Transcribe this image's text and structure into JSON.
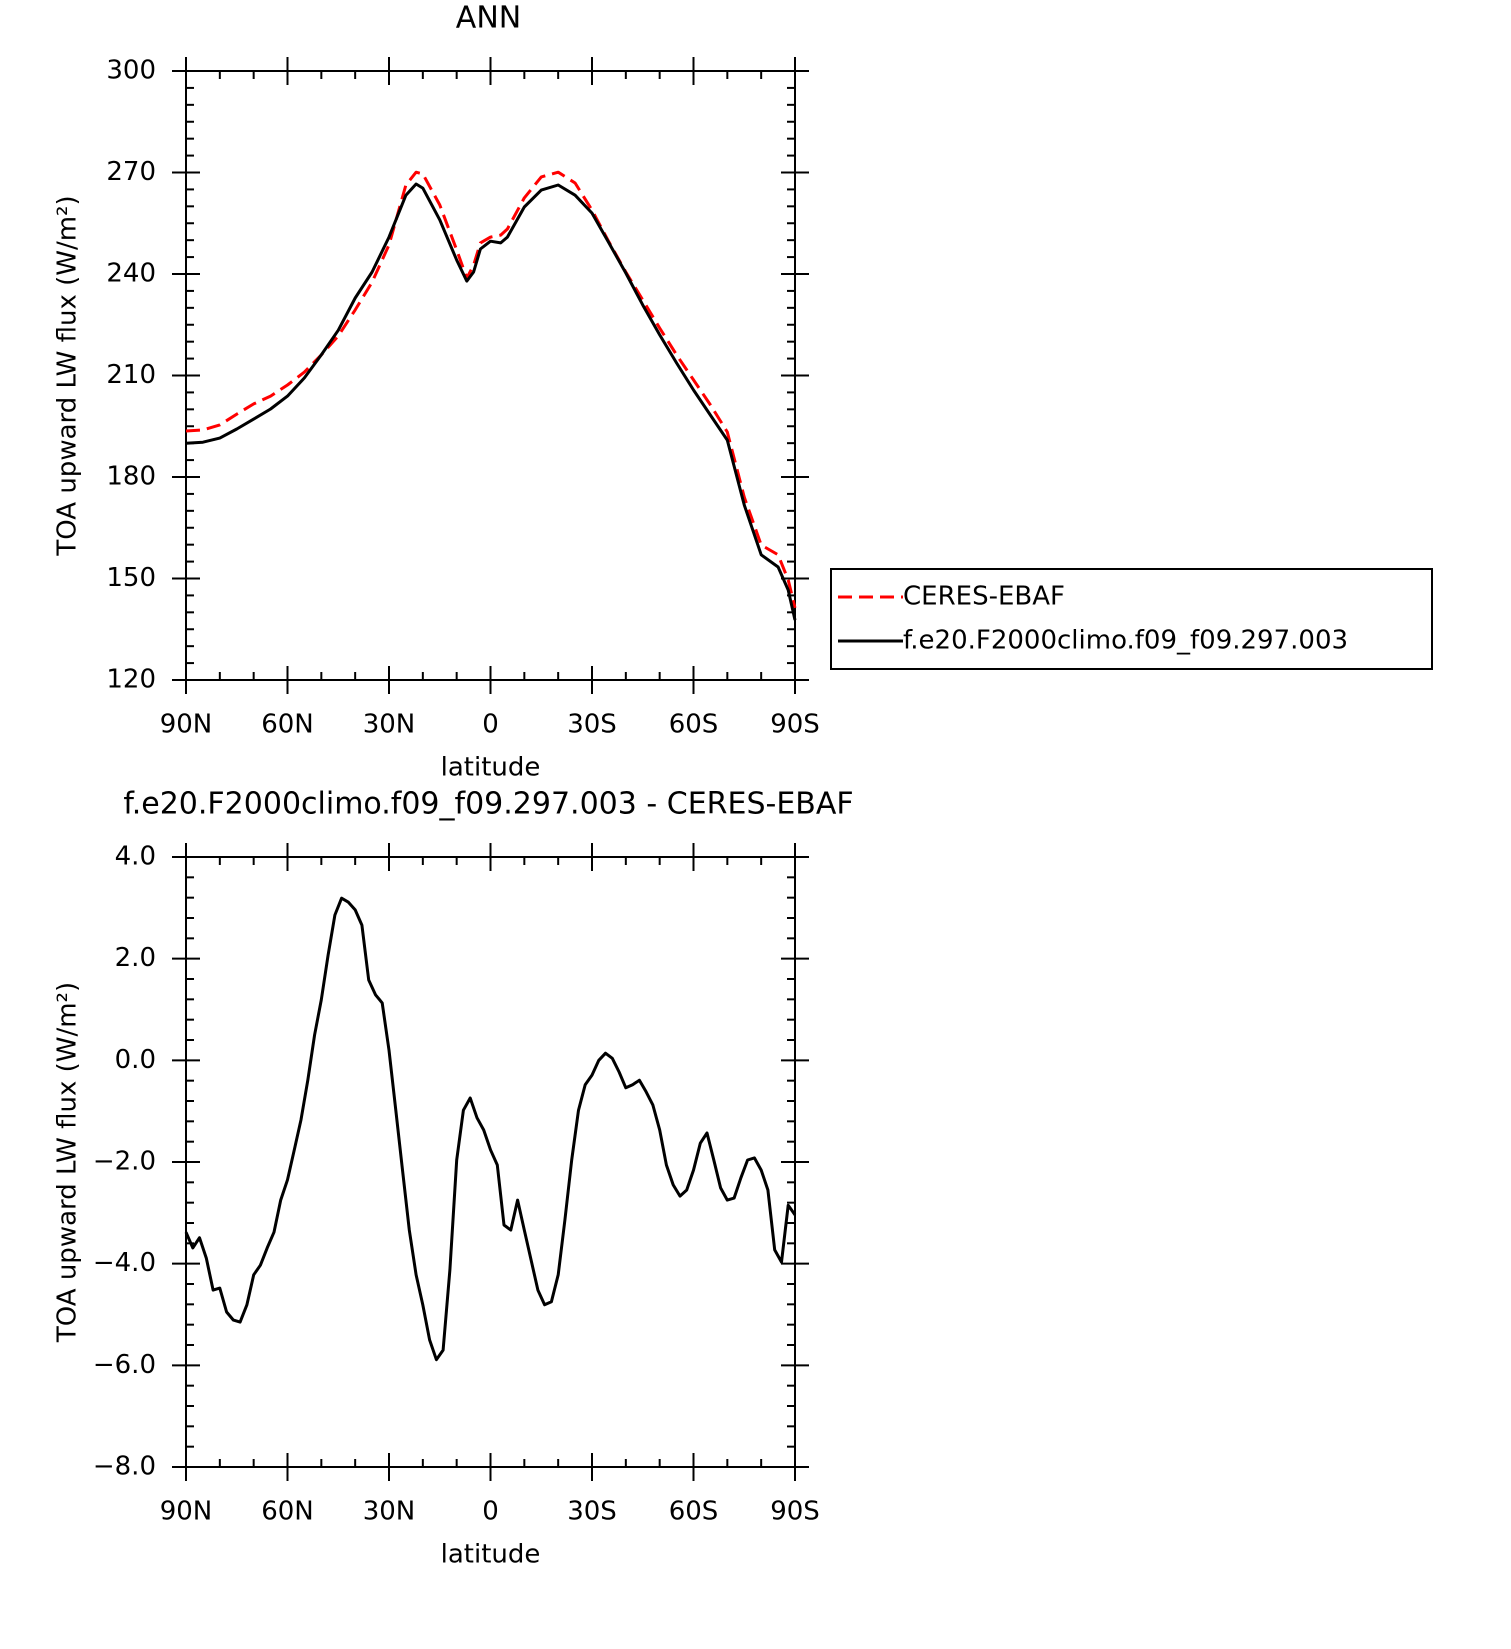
{
  "chart_data": [
    {
      "type": "line",
      "title": "ANN",
      "xlabel": "latitude",
      "ylabel": "TOA upward LW flux (W/m²)",
      "x": [
        90,
        85,
        80,
        75,
        70,
        65,
        60,
        55,
        50,
        45,
        40,
        35,
        30,
        25,
        22,
        20,
        15,
        10,
        7,
        5,
        3,
        0,
        -3,
        -5,
        -10,
        -15,
        -20,
        -25,
        -30,
        -35,
        -40,
        -45,
        -50,
        -55,
        -60,
        -65,
        -70,
        -75,
        -80,
        -85,
        -88,
        -90
      ],
      "series": [
        {
          "name": "CERES-EBAF",
          "color": "#ff0000",
          "style": "dashed",
          "values": [
            193.6,
            193.9,
            195.4,
            198.6,
            201.6,
            203.9,
            207.2,
            211,
            216.1,
            221.7,
            229.4,
            237.6,
            248.6,
            266.3,
            270.1,
            269.6,
            260.4,
            247.1,
            238.8,
            242.6,
            249.2,
            250.9,
            251.5,
            253.3,
            262.5,
            268.7,
            270.1,
            266.9,
            258.9,
            249.5,
            240.6,
            232.3,
            224,
            216.1,
            208.7,
            201.3,
            193.3,
            174,
            159.9,
            157,
            149.6,
            141.3
          ]
        },
        {
          "name": "f.e20.F2000climo.f09_f09.297.003",
          "color": "#000000",
          "style": "solid",
          "values": [
            190,
            190.3,
            191.5,
            194.2,
            197.1,
            200.1,
            203.9,
            209.3,
            216.1,
            223.4,
            232.9,
            240.6,
            250.9,
            263.3,
            266.6,
            265.4,
            256,
            244.1,
            237.9,
            240.6,
            247.4,
            249.7,
            249.2,
            250.9,
            259.8,
            264.8,
            266.3,
            263.3,
            258,
            249.2,
            240.3,
            230.8,
            222,
            213.7,
            205.7,
            198.3,
            190.9,
            171.7,
            157,
            153.4,
            146.6,
            137.7
          ]
        }
      ],
      "xlim": [
        90,
        -90
      ],
      "xticks": [
        {
          "value": 90,
          "label": "90N"
        },
        {
          "value": 60,
          "label": "60N"
        },
        {
          "value": 30,
          "label": "30N"
        },
        0,
        {
          "value": -30,
          "label": "30S"
        },
        {
          "value": -60,
          "label": "60S"
        },
        {
          "value": -90,
          "label": "90S"
        }
      ],
      "ylim": [
        120,
        300
      ],
      "yticks": [
        120,
        150,
        180,
        210,
        240,
        270,
        300
      ],
      "legend": "right"
    },
    {
      "type": "line",
      "title": "f.e20.F2000climo.f09_f09.297.003 - CERES-EBAF",
      "xlabel": "latitude",
      "ylabel": "TOA upward LW flux (W/m²)",
      "x": [
        90,
        88,
        86,
        84,
        82,
        80,
        78,
        76,
        74,
        72,
        70,
        68,
        66,
        64,
        62,
        60,
        58,
        56,
        54,
        52,
        50,
        48,
        46,
        44,
        42,
        40,
        38,
        36,
        34,
        32,
        30,
        28,
        26,
        24,
        22,
        20,
        18,
        16,
        14,
        12,
        10,
        8,
        6,
        4,
        2,
        0,
        -2,
        -4,
        -6,
        -8,
        -10,
        -12,
        -14,
        -16,
        -18,
        -20,
        -22,
        -24,
        -26,
        -28,
        -30,
        -32,
        -34,
        -36,
        -38,
        -40,
        -42,
        -44,
        -46,
        -48,
        -50,
        -52,
        -54,
        -56,
        -58,
        -60,
        -62,
        -64,
        -66,
        -68,
        -70,
        -72,
        -74,
        -76,
        -78,
        -80,
        -82,
        -84,
        -86,
        -88,
        -90
      ],
      "series": [
        {
          "color": "#000000",
          "style": "solid",
          "values": [
            -3.38,
            -3.69,
            -3.49,
            -3.89,
            -4.52,
            -4.48,
            -4.95,
            -5.11,
            -5.15,
            -4.81,
            -4.22,
            -4.03,
            -3.69,
            -3.38,
            -2.75,
            -2.35,
            -1.76,
            -1.17,
            -0.39,
            0.5,
            1.19,
            2.07,
            2.86,
            3.19,
            3.11,
            2.96,
            2.66,
            1.58,
            1.29,
            1.13,
            0.2,
            -0.98,
            -2.16,
            -3.34,
            -4.22,
            -4.81,
            -5.5,
            -5.89,
            -5.7,
            -4.12,
            -1.96,
            -0.98,
            -0.74,
            -1.13,
            -1.37,
            -1.76,
            -2.06,
            -3.24,
            -3.34,
            -2.75,
            -3.34,
            -3.93,
            -4.52,
            -4.81,
            -4.75,
            -4.22,
            -3.14,
            -1.96,
            -0.98,
            -0.48,
            -0.29,
            0,
            0.14,
            0.04,
            -0.23,
            -0.54,
            -0.48,
            -0.39,
            -0.62,
            -0.88,
            -1.37,
            -2.06,
            -2.45,
            -2.67,
            -2.55,
            -2.16,
            -1.63,
            -1.43,
            -1.96,
            -2.51,
            -2.75,
            -2.71,
            -2.31,
            -1.96,
            -1.92,
            -2.16,
            -2.55,
            -3.73,
            -3.97,
            -2.85,
            -3.04
          ]
        }
      ],
      "xlim": [
        90,
        -90
      ],
      "xticks": [
        {
          "value": 90,
          "label": "90N"
        },
        {
          "value": 60,
          "label": "60N"
        },
        {
          "value": 30,
          "label": "30N"
        },
        0,
        {
          "value": -30,
          "label": "30S"
        },
        {
          "value": -60,
          "label": "60S"
        },
        {
          "value": -90,
          "label": "90S"
        }
      ],
      "ylim": [
        -8,
        4
      ],
      "yticks": [
        {
          "value": -8,
          "label": "−8.0"
        },
        {
          "value": -6,
          "label": "−6.0"
        },
        {
          "value": -4,
          "label": "−4.0"
        },
        {
          "value": -2,
          "label": "−2.0"
        },
        {
          "value": 0,
          "label": "0.0"
        },
        {
          "value": 2,
          "label": "2.0"
        },
        {
          "value": 4,
          "label": "4.0"
        }
      ]
    }
  ]
}
